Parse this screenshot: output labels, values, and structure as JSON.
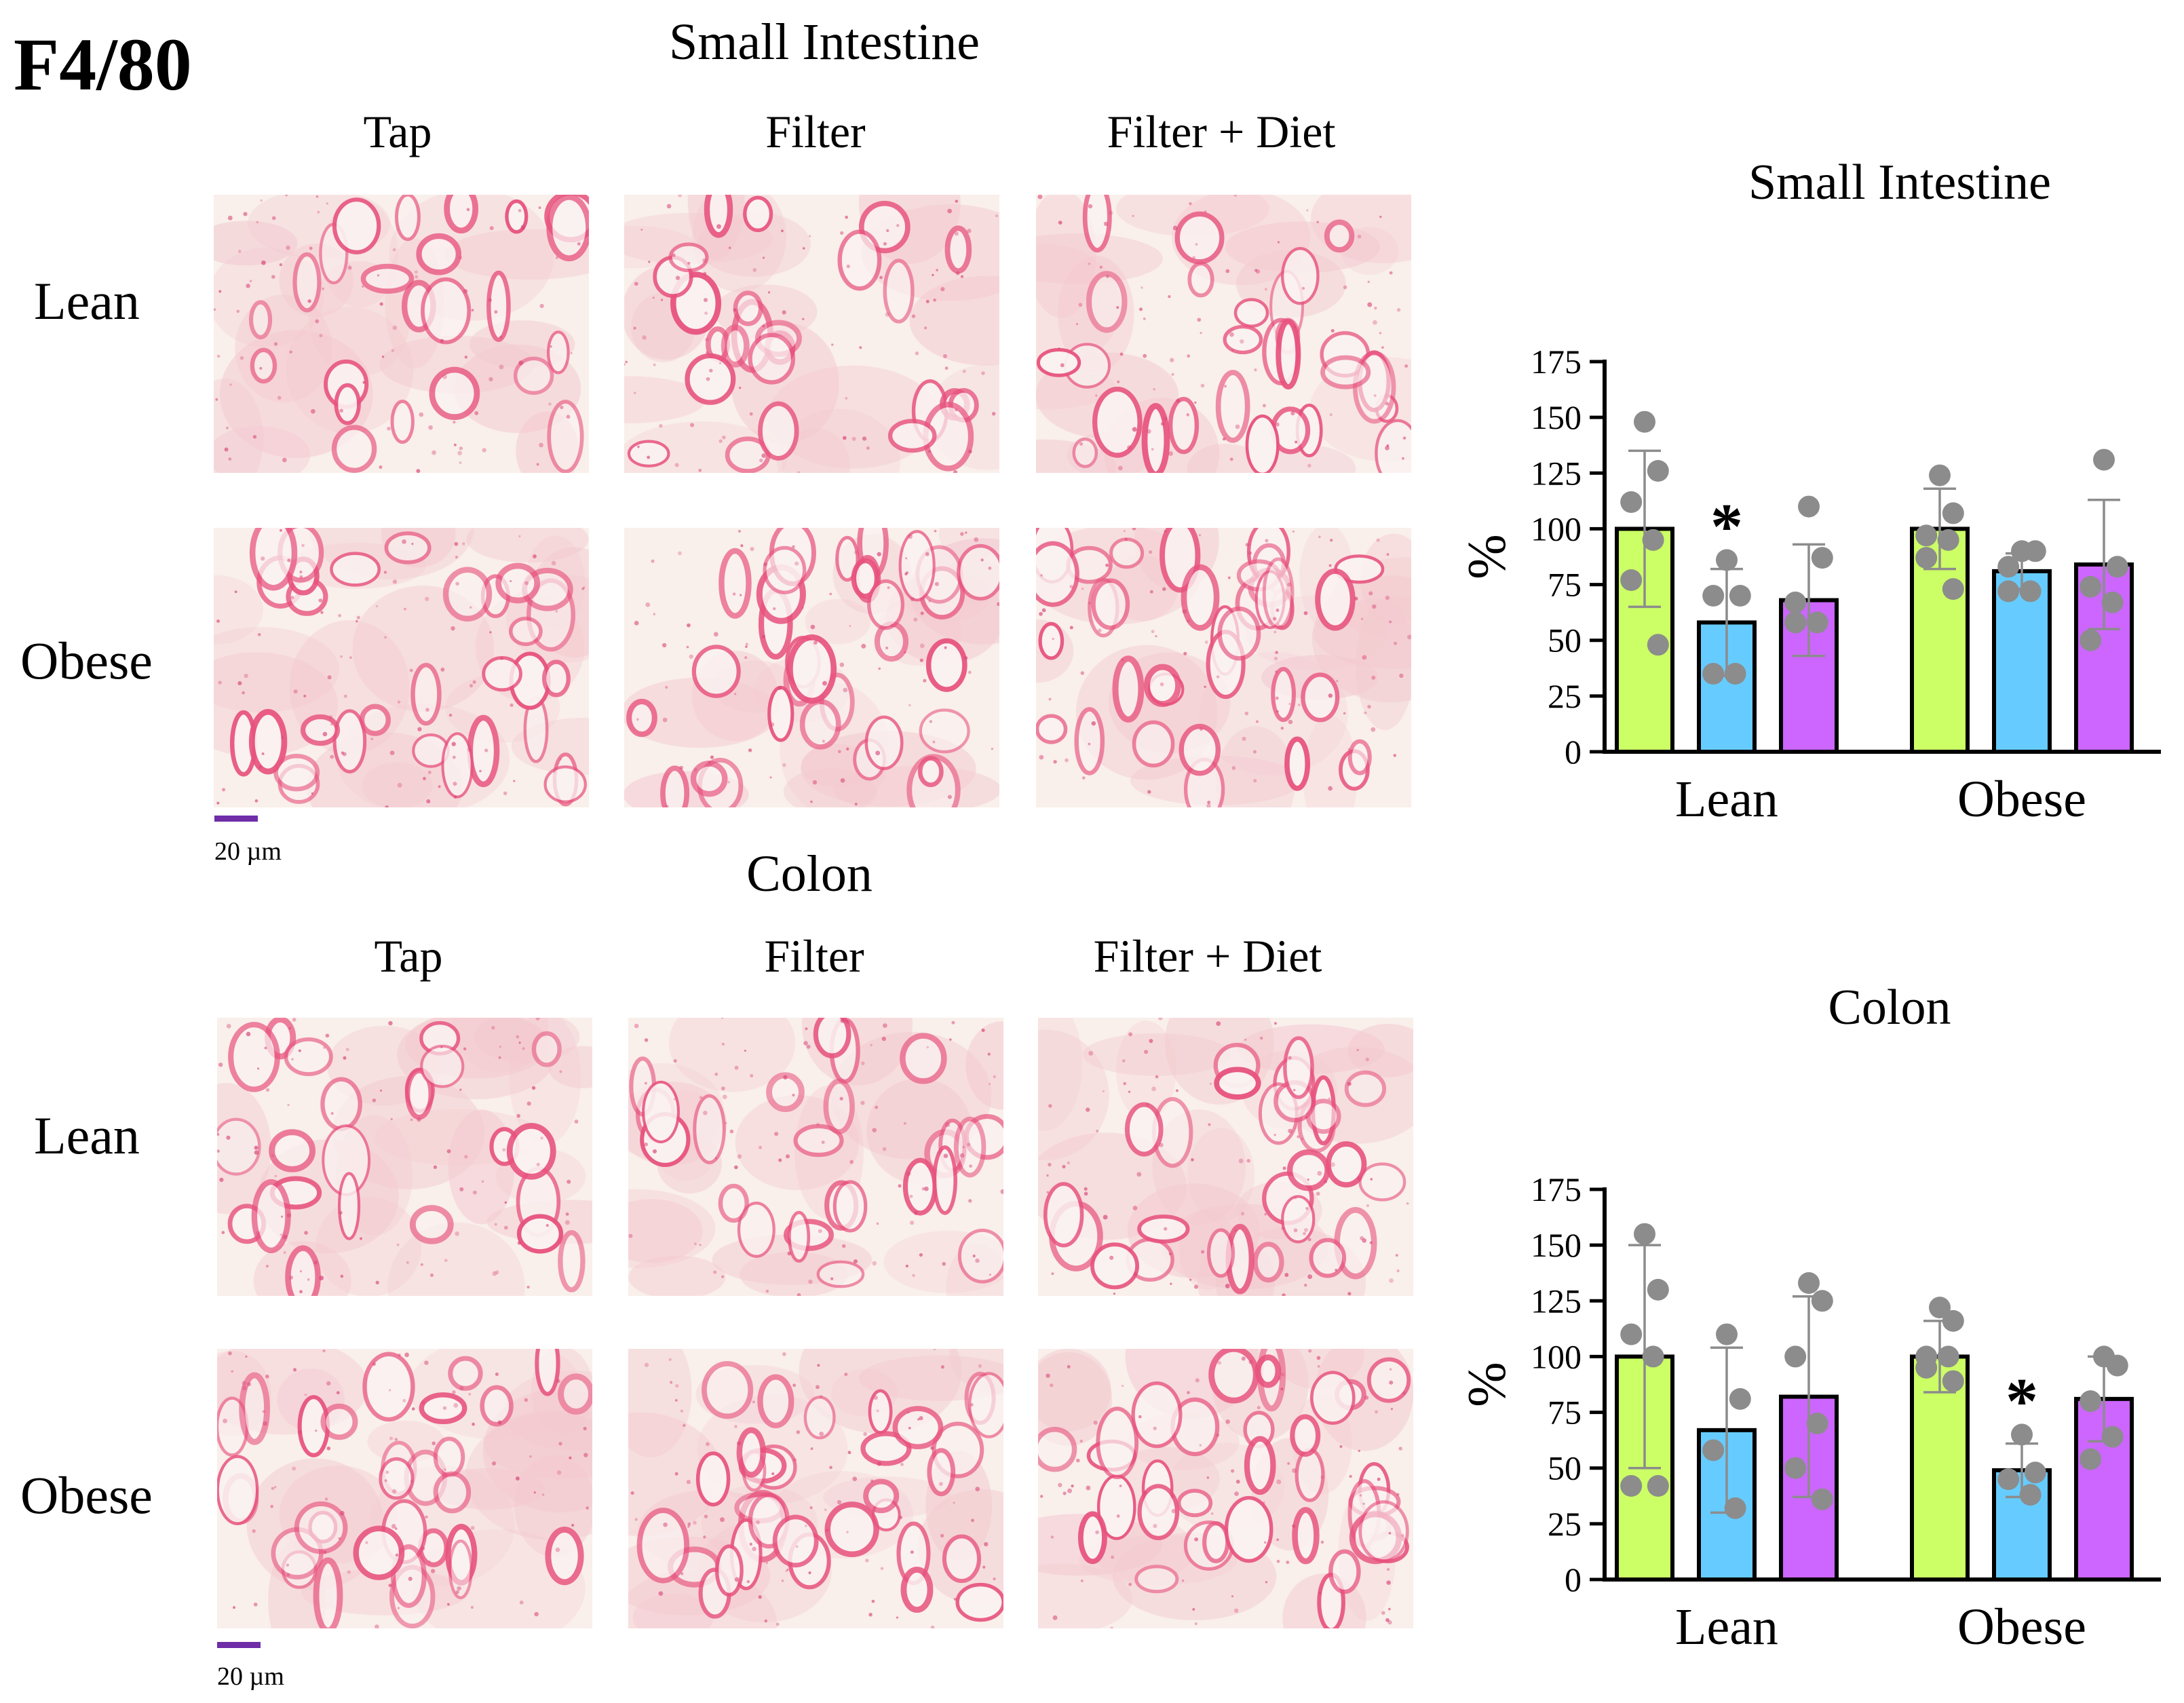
{
  "panel_label": "F4/80",
  "sections": [
    {
      "title": "Small Intestine",
      "columns": [
        "Tap",
        "Filter",
        "Filter + Diet"
      ],
      "rows": [
        "Lean",
        "Obese"
      ],
      "scale_bar": "20 µm"
    },
    {
      "title": "Colon",
      "columns": [
        "Tap",
        "Filter",
        "Filter + Diet"
      ],
      "rows": [
        "Lean",
        "Obese"
      ],
      "scale_bar": "20 µm"
    }
  ],
  "colors": {
    "tap": "#ccff66",
    "filter": "#66ccff",
    "filter_diet": "#cc66ff",
    "point": "#8c8c8c",
    "error": "#8c8c8c",
    "stain": "#e8537e",
    "scale_bar": "#6f2da8"
  },
  "chart_data": [
    {
      "type": "bar",
      "title": "Small Intestine",
      "ylabel": "%",
      "ylim": [
        0,
        175
      ],
      "yticks": [
        "0",
        "25",
        "50",
        "75",
        "100",
        "125",
        "150",
        "175"
      ],
      "categories": [
        "Lean",
        "Obese"
      ],
      "series": [
        {
          "color": "#ccff66",
          "values": [
            100,
            100
          ],
          "sd": [
            35,
            18
          ],
          "points": [
            [
              148,
              126,
              112,
              95,
              77,
              48
            ],
            [
              124,
              107,
              97,
              95,
              87,
              73
            ]
          ]
        },
        {
          "color": "#66ccff",
          "values": [
            58,
            81
          ],
          "sd": [
            24,
            8
          ],
          "points": [
            [
              86,
              70,
              70,
              35,
              35
            ],
            [
              90,
              90,
              83,
              72,
              72
            ]
          ]
        },
        {
          "color": "#cc66ff",
          "values": [
            68,
            84
          ],
          "sd": [
            25,
            29
          ],
          "points": [
            [
              110,
              87,
              67,
              58,
              58
            ],
            [
              131,
              83,
              74,
              67,
              50
            ]
          ]
        }
      ],
      "annotations": [
        {
          "category": "Lean",
          "series": 1,
          "text": "*"
        }
      ]
    },
    {
      "type": "bar",
      "title": "Colon",
      "ylabel": "%",
      "ylim": [
        0,
        175
      ],
      "yticks": [
        "0",
        "25",
        "50",
        "75",
        "100",
        "125",
        "150",
        "175"
      ],
      "categories": [
        "Lean",
        "Obese"
      ],
      "series": [
        {
          "color": "#ccff66",
          "values": [
            100,
            100
          ],
          "sd": [
            50,
            16
          ],
          "points": [
            [
              155,
              130,
              110,
              100,
              42,
              42
            ],
            [
              122,
              116,
              100,
              100,
              95,
              89
            ]
          ]
        },
        {
          "color": "#66ccff",
          "values": [
            67,
            49
          ],
          "sd": [
            37,
            12
          ],
          "points": [
            [
              110,
              81,
              58,
              32
            ],
            [
              65,
              48,
              45,
              38
            ]
          ]
        },
        {
          "color": "#cc66ff",
          "values": [
            82,
            81
          ],
          "sd": [
            45,
            19
          ],
          "points": [
            [
              133,
              125,
              100,
              70,
              50,
              36
            ],
            [
              100,
              96,
              80,
              64,
              54
            ]
          ]
        }
      ],
      "annotations": [
        {
          "category": "Obese",
          "series": 1,
          "text": "*"
        }
      ]
    }
  ]
}
